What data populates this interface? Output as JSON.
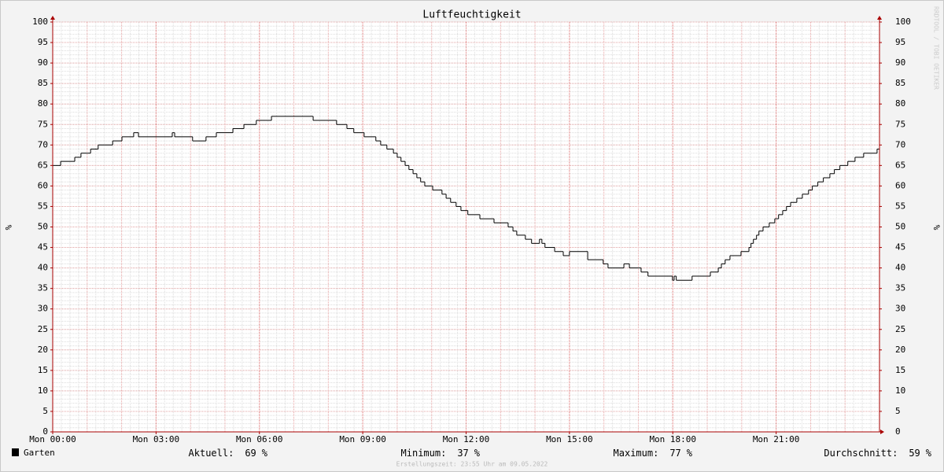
{
  "chart_data": {
    "type": "line",
    "title": "Luftfeuchtigkeit",
    "y_label": "%",
    "watermark": "RRDTOOL / TOBI OETIKER",
    "x": [
      0,
      0.23,
      0.64,
      0.82,
      1.1,
      1.32,
      1.74,
      2.01,
      2.35,
      2.49,
      3.47,
      3.54,
      4.06,
      4.45,
      4.75,
      5.23,
      5.55,
      5.91,
      6.35,
      7.56,
      8.24,
      8.54,
      8.74,
      9.04,
      9.38,
      9.52,
      9.7,
      9.89,
      10,
      10.11,
      10.23,
      10.34,
      10.46,
      10.57,
      10.68,
      10.8,
      11.03,
      11.3,
      11.42,
      11.55,
      11.71,
      11.85,
      12.05,
      12.4,
      12.81,
      13.22,
      13.36,
      13.47,
      13.72,
      13.9,
      14.13,
      14.2,
      14.29,
      14.57,
      14.82,
      15,
      15.53,
      15.98,
      16.12,
      16.58,
      16.74,
      17.08,
      17.28,
      17.99,
      18.04,
      18.1,
      18.56,
      19.09,
      19.32,
      19.41,
      19.52,
      19.66,
      19.98,
      20.21,
      20.27,
      20.34,
      20.43,
      20.5,
      20.62,
      20.8,
      20.96,
      21.07,
      21.19,
      21.3,
      21.42,
      21.6,
      21.76,
      21.94,
      22.05,
      22.21,
      22.37,
      22.56,
      22.69,
      22.85,
      23.08,
      23.29,
      23.54,
      23.93
    ],
    "series": [
      {
        "name": "Garten",
        "color": "#000000",
        "values": [
          65,
          66,
          67,
          68,
          69,
          70,
          71,
          72,
          73,
          72,
          73,
          72,
          71,
          72,
          73,
          74,
          75,
          76,
          77,
          76,
          75,
          74,
          73,
          72,
          71,
          70,
          69,
          68,
          67,
          66,
          65,
          64,
          63,
          62,
          61,
          60,
          59,
          58,
          57,
          56,
          55,
          54,
          53,
          52,
          51,
          50,
          49,
          48,
          47,
          46,
          47,
          46,
          45,
          44,
          43,
          44,
          42,
          41,
          40,
          41,
          40,
          39,
          38,
          37,
          38,
          37,
          38,
          39,
          40,
          41,
          42,
          43,
          44,
          45,
          46,
          47,
          48,
          49,
          50,
          51,
          52,
          53,
          54,
          55,
          56,
          57,
          58,
          59,
          60,
          61,
          62,
          63,
          64,
          65,
          66,
          67,
          68,
          69
        ]
      }
    ],
    "step": true,
    "xlim": [
      0,
      24
    ],
    "xticks": [
      {
        "value": 0,
        "label": "Mon 00:00"
      },
      {
        "value": 3,
        "label": "Mon 03:00"
      },
      {
        "value": 6,
        "label": "Mon 06:00"
      },
      {
        "value": 9,
        "label": "Mon 09:00"
      },
      {
        "value": 12,
        "label": "Mon 12:00"
      },
      {
        "value": 15,
        "label": "Mon 15:00"
      },
      {
        "value": 18,
        "label": "Mon 18:00"
      },
      {
        "value": 21,
        "label": "Mon 21:00"
      }
    ],
    "ylim": [
      0,
      100
    ],
    "yticks": [
      0,
      5,
      10,
      15,
      20,
      25,
      30,
      35,
      40,
      45,
      50,
      55,
      60,
      65,
      70,
      75,
      80,
      85,
      90,
      95,
      100
    ],
    "grid": true,
    "stats": [
      {
        "label": "Aktuell:",
        "value": 69,
        "unit": "%"
      },
      {
        "label": "Minimum:",
        "value": 37,
        "unit": "%"
      },
      {
        "label": "Maximum:",
        "value": 77,
        "unit": "%"
      },
      {
        "label": "Durchschnitt:",
        "value": 59,
        "unit": "%"
      }
    ],
    "footer": "Erstellungszeit: 23:55 Uhr am 09.05.2022"
  }
}
